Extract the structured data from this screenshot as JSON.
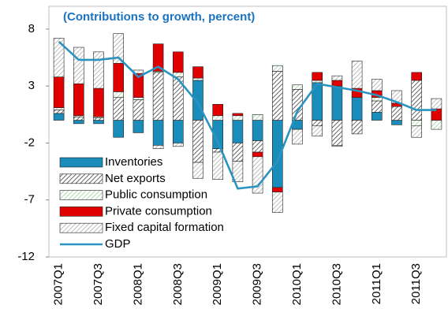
{
  "chart_data": {
    "type": "bar",
    "stacked": true,
    "title": "(Contributions to growth, percent)",
    "categories": [
      "2007Q1",
      null,
      "2007Q3",
      null,
      "2008Q1",
      null,
      "2008Q3",
      null,
      "2009Q1",
      null,
      "2009Q3",
      null,
      "2010Q1",
      null,
      "2010Q3",
      null,
      "2011Q1",
      null,
      "2011Q3",
      null
    ],
    "series": [
      {
        "name": "Inventories",
        "color": "#1a8cba",
        "hatch": false,
        "values": [
          0.6,
          -0.3,
          -0.3,
          -1.5,
          -1.1,
          -2.2,
          -2.0,
          3.5,
          -2.5,
          -2.0,
          -1.8,
          -5.9,
          -0.8,
          3.3,
          3.0,
          2.0,
          0.7,
          -0.4,
          0.0,
          0.0
        ]
      },
      {
        "name": "Net exports",
        "color": "#404040",
        "hatch": true,
        "values": [
          0.3,
          0.3,
          0.2,
          2.0,
          1.8,
          4.2,
          3.8,
          -3.7,
          -0.3,
          -1.6,
          -1.0,
          4.3,
          2.7,
          -0.5,
          -2.2,
          -1.2,
          1.0,
          1.2,
          3.5,
          0.0
        ]
      },
      {
        "name": "Public consumption",
        "color": "#8fc98f",
        "hatch": true,
        "values": [
          0.2,
          0.1,
          0.1,
          0.5,
          0.2,
          0.1,
          0.4,
          0.2,
          0.4,
          0.4,
          0.5,
          0.5,
          0.4,
          0.2,
          -0.1,
          0.0,
          0.3,
          0.0,
          -0.5,
          -0.8
        ]
      },
      {
        "name": "Private consumption",
        "color": "#e00000",
        "hatch": false,
        "values": [
          2.7,
          2.8,
          2.5,
          2.5,
          2.1,
          2.4,
          1.8,
          1.0,
          1.0,
          0.2,
          -0.4,
          -0.4,
          0.0,
          0.7,
          0.5,
          0.8,
          0.6,
          0.3,
          0.7,
          1.0
        ]
      },
      {
        "name": "Fixed capital formation",
        "color": "#a0a0a0",
        "hatch": true,
        "values": [
          3.4,
          3.2,
          3.2,
          2.6,
          0.3,
          -0.3,
          -0.3,
          -1.4,
          -2.4,
          -1.8,
          -3.2,
          -1.8,
          -1.3,
          -0.9,
          0.4,
          2.4,
          1.0,
          1.1,
          -1.0,
          0.9
        ]
      },
      {
        "name": "GDP",
        "type": "line",
        "color": "#2a93c0",
        "values": [
          6.9,
          5.3,
          5.3,
          5.5,
          3.8,
          4.7,
          3.6,
          1.5,
          -1.9,
          -6.0,
          -5.8,
          -3.6,
          0.8,
          3.2,
          2.9,
          2.6,
          2.2,
          1.6,
          0.9,
          0.9
        ]
      }
    ],
    "ylim": [
      -12,
      10
    ],
    "yticks": [
      -12,
      -7,
      -2,
      3,
      8
    ]
  }
}
